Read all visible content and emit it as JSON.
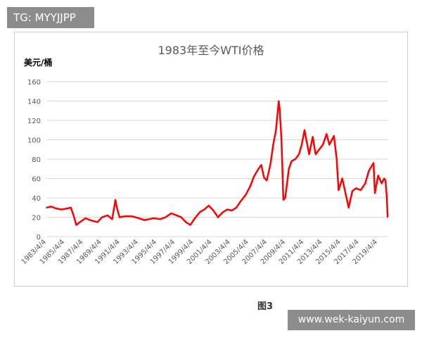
{
  "watermark_top": "TG: MYYJJPP",
  "watermark_bottom": "www.wek-kaiyun.com",
  "caption": "图3",
  "chart_data": {
    "type": "line",
    "title": "1983年至今WTI价格",
    "ylabel": "美元/桶",
    "xlabel": "",
    "ylim": [
      0,
      160
    ],
    "yticks": [
      "0",
      "20",
      "40",
      "60",
      "80",
      "100",
      "120",
      "140",
      "160"
    ],
    "xlim": [
      1983.25,
      2020.4
    ],
    "xtick_labels": [
      "1983/4/4",
      "1985/4/4",
      "1987/4/4",
      "1989/4/4",
      "1991/4/4",
      "1993/4/4",
      "1995/4/4",
      "1997/4/4",
      "1999/4/4",
      "2001/4/4",
      "2003/4/4",
      "2005/4/4",
      "2007/4/4",
      "2009/4/4",
      "2011/4/4",
      "2013/4/4",
      "2015/4/4",
      "2017/4/4",
      "2019/4/4"
    ],
    "xtick_years": [
      1983.25,
      1985.25,
      1987.25,
      1989.25,
      1991.25,
      1993.25,
      1995.25,
      1997.25,
      1999.25,
      2001.25,
      2003.25,
      2005.25,
      2007.25,
      2009.25,
      2011.25,
      2013.25,
      2015.25,
      2017.25,
      2019.25
    ],
    "grid": "horizontal",
    "color": "#ff0000",
    "series": [
      {
        "x": [
          1983.25,
          1983.8,
          1984.3,
          1984.9,
          1985.5,
          1985.9,
          1986.2,
          1986.5,
          1986.9,
          1987.5,
          1988.0,
          1988.8,
          1989.3,
          1989.9,
          1990.4,
          1990.75,
          1990.9,
          1991.2,
          1991.8,
          1992.5,
          1993.3,
          1993.9,
          1994.4,
          1994.9,
          1995.6,
          1996.2,
          1996.8,
          1997.4,
          1997.9,
          1998.4,
          1998.9,
          1999.3,
          1999.9,
          2000.4,
          2000.9,
          2001.4,
          2001.9,
          2002.4,
          2002.9,
          2003.4,
          2003.9,
          2004.4,
          2004.9,
          2005.4,
          2005.8,
          2006.3,
          2006.6,
          2006.9,
          2007.2,
          2007.6,
          2007.9,
          2008.2,
          2008.5,
          2008.6,
          2008.8,
          2009.0,
          2009.2,
          2009.6,
          2009.9,
          2010.3,
          2010.7,
          2011.0,
          2011.3,
          2011.8,
          2012.2,
          2012.5,
          2012.9,
          2013.3,
          2013.7,
          2014.0,
          2014.5,
          2014.8,
          2015.0,
          2015.4,
          2015.8,
          2016.1,
          2016.5,
          2016.9,
          2017.4,
          2017.9,
          2018.3,
          2018.8,
          2018.95,
          2019.3,
          2019.7,
          2019.95,
          2020.1,
          2020.25,
          2020.33
        ],
        "y": [
          30,
          31,
          29,
          28,
          29,
          30,
          22,
          12,
          15,
          19,
          17,
          15,
          20,
          22,
          18,
          38,
          30,
          20,
          21,
          21,
          19,
          17,
          18,
          19,
          18,
          20,
          24,
          22,
          20,
          15,
          12,
          18,
          25,
          28,
          32,
          27,
          20,
          25,
          28,
          27,
          30,
          37,
          43,
          52,
          62,
          70,
          74,
          61,
          58,
          75,
          95,
          110,
          140,
          132,
          100,
          38,
          40,
          70,
          78,
          80,
          85,
          95,
          110,
          85,
          103,
          85,
          90,
          95,
          106,
          95,
          104,
          80,
          48,
          60,
          43,
          30,
          47,
          50,
          48,
          55,
          68,
          76,
          45,
          63,
          55,
          60,
          58,
          40,
          20
        ]
      }
    ]
  }
}
